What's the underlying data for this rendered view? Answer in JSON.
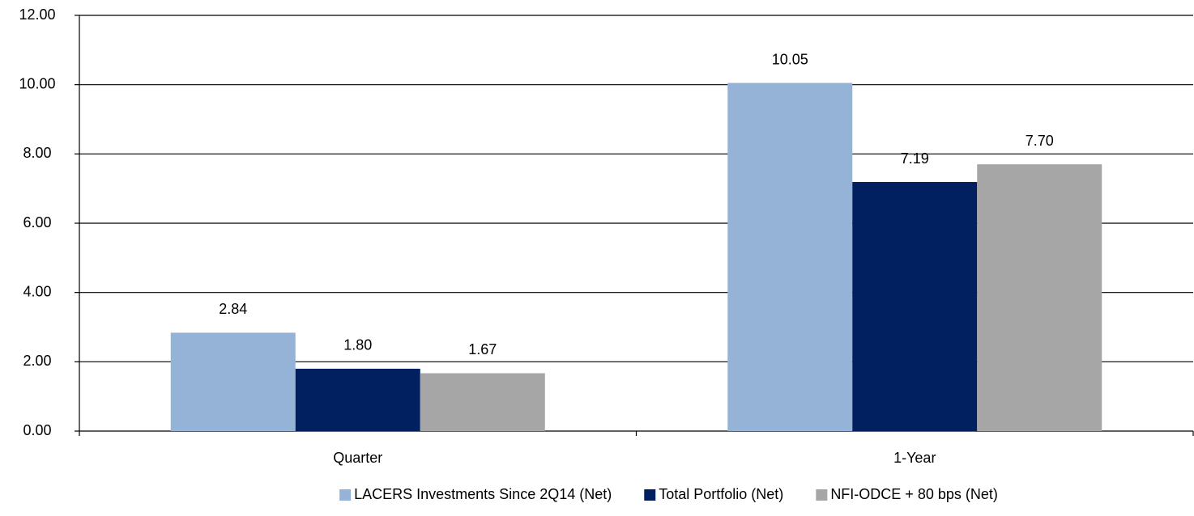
{
  "chart_data": {
    "type": "bar",
    "categories": [
      "Quarter",
      "1-Year"
    ],
    "series": [
      {
        "name": "LACERS Investments Since 2Q14 (Net)",
        "color": "#95b3d7",
        "values": [
          2.84,
          10.05
        ],
        "value_labels": [
          "2.84",
          "10.05"
        ]
      },
      {
        "name": "Total Portfolio (Net)",
        "color": "#002060",
        "values": [
          1.8,
          7.19
        ],
        "value_labels": [
          "1.80",
          "7.19"
        ]
      },
      {
        "name": "NFI-ODCE + 80 bps (Net)",
        "color": "#a6a6a6",
        "values": [
          1.67,
          7.7
        ],
        "value_labels": [
          "1.67",
          "7.70"
        ]
      }
    ],
    "ylim": [
      0,
      12
    ],
    "yticks": [
      {
        "value": 0,
        "label": "0.00"
      },
      {
        "value": 2,
        "label": "2.00"
      },
      {
        "value": 4,
        "label": "4.00"
      },
      {
        "value": 6,
        "label": "6.00"
      },
      {
        "value": 8,
        "label": "8.00"
      },
      {
        "value": 10,
        "label": "10.00"
      },
      {
        "value": 12,
        "label": "12.00"
      }
    ],
    "grid": true,
    "legend": "bottom"
  }
}
